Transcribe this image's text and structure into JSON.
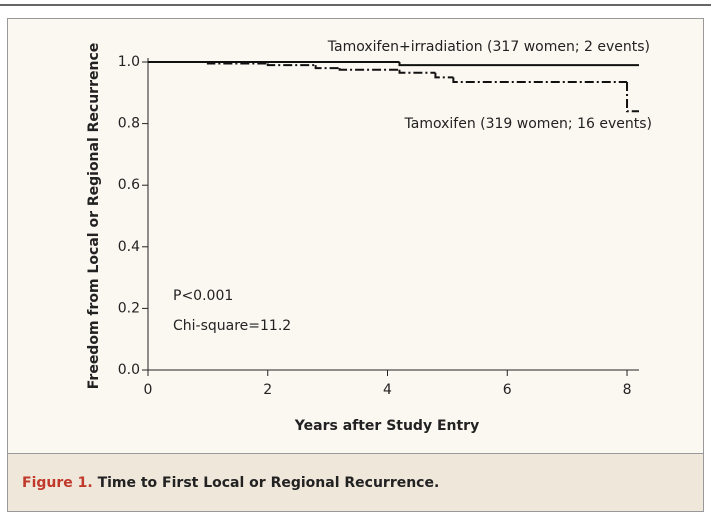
{
  "chart_data": {
    "type": "step",
    "ylabel": "Freedom from Local or Regional Recurrence",
    "xlabel": "Years after Study Entry",
    "xlim": [
      0,
      8.2
    ],
    "ylim": [
      0,
      1.0
    ],
    "xticks": [
      0,
      2,
      4,
      6,
      8
    ],
    "yticks": [
      {
        "value": 0,
        "label": "0.0"
      },
      {
        "value": 0.2,
        "label": "0.2"
      },
      {
        "value": 0.4,
        "label": "0.4"
      },
      {
        "value": 0.6,
        "label": "0.6"
      },
      {
        "value": 0.8,
        "label": "0.8"
      },
      {
        "value": 1.0,
        "label": "1.0"
      }
    ],
    "series": [
      {
        "name": "Tamoxifen+irradiation (317 women; 2 events)",
        "color": "#111111",
        "style": "solid",
        "x": [
          0,
          4.2,
          8.2
        ],
        "values": [
          1.0,
          0.99,
          0.99
        ]
      },
      {
        "name": "Tamoxifen (319 women; 16 events)",
        "color": "#111111",
        "style": "dashdot",
        "x": [
          0,
          1,
          2,
          2.8,
          3.2,
          4.2,
          4.8,
          5.1,
          8,
          8.2
        ],
        "values": [
          1.0,
          0.995,
          0.99,
          0.98,
          0.975,
          0.965,
          0.95,
          0.935,
          0.84,
          0.84
        ]
      }
    ],
    "annotations": [
      "P<0.001",
      "Chi-square=11.2"
    ],
    "caption_label": "Figure 1.",
    "caption_text": "Time to First Local or Regional Recurrence."
  }
}
